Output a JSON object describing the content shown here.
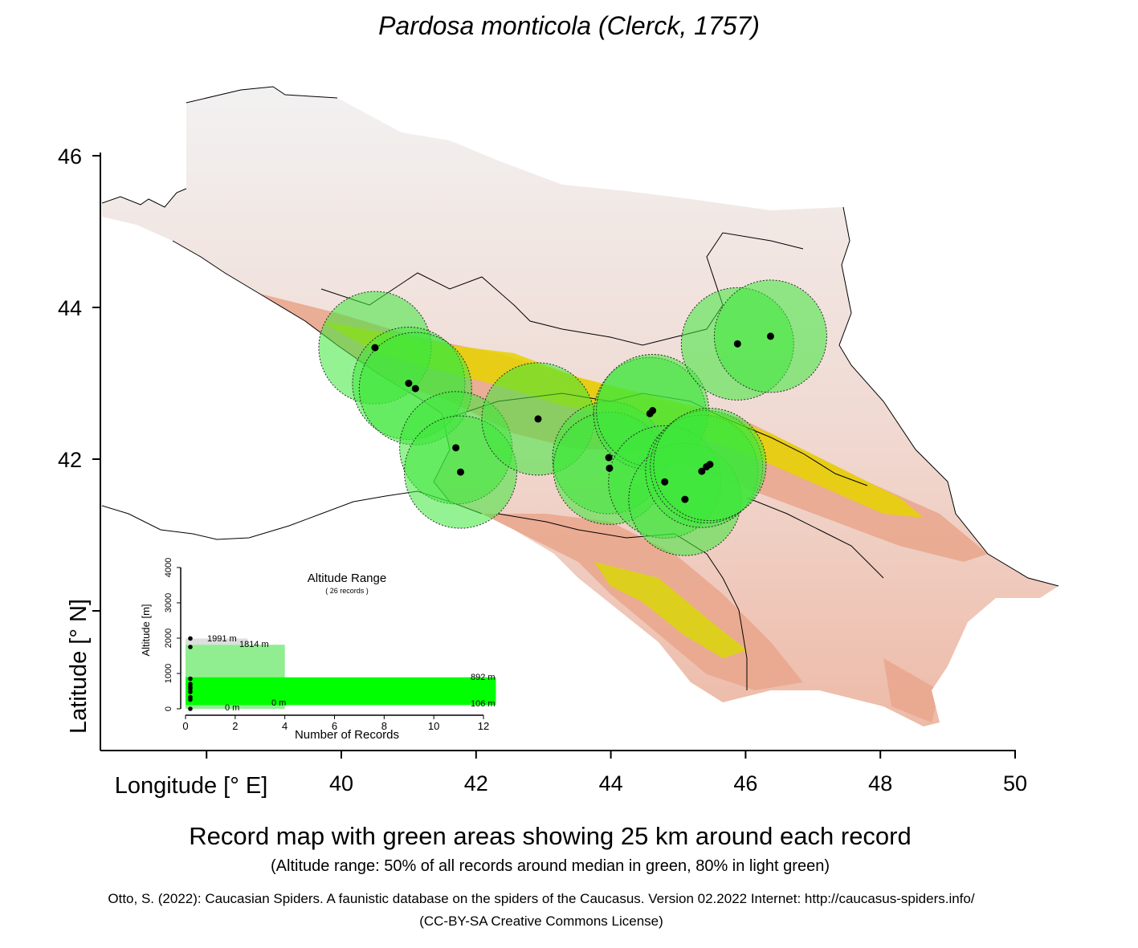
{
  "title": "Pardosa monticola (Clerck, 1757)",
  "caption": "Record map with green areas showing 25 km around each record",
  "subcaption": "(Altitude range: 50% of all records around median in green, 80% in light green)",
  "citation": "Otto, S. (2022): Caucasian Spiders. A faunistic database on the spiders of the Caucasus. Version 02.2022 Internet: http://caucasus-spiders.info/",
  "license": "(CC-BY-SA Creative Commons License)",
  "map": {
    "x_axis_label": "Longitude [° E]",
    "y_axis_label": "Latitude [° N]",
    "x_ticks": [
      "40",
      "42",
      "44",
      "46",
      "48",
      "50"
    ],
    "y_ticks": [
      "42",
      "44",
      "46"
    ],
    "buffer_radius_km": 25,
    "colors": {
      "buffer": "#3ee83a",
      "record": "#000000",
      "relief_low": "#f2f2f2",
      "relief_mid": "#e8a080",
      "relief_high": "#e6e600"
    },
    "records": [
      {
        "lon": 40.5,
        "lat": 43.47
      },
      {
        "lon": 41.0,
        "lat": 43.0
      },
      {
        "lon": 41.1,
        "lat": 42.93
      },
      {
        "lon": 41.7,
        "lat": 42.15
      },
      {
        "lon": 41.77,
        "lat": 41.83
      },
      {
        "lon": 42.92,
        "lat": 42.53
      },
      {
        "lon": 43.97,
        "lat": 42.02
      },
      {
        "lon": 43.98,
        "lat": 41.88
      },
      {
        "lon": 44.58,
        "lat": 42.6
      },
      {
        "lon": 44.62,
        "lat": 42.64
      },
      {
        "lon": 44.8,
        "lat": 41.7
      },
      {
        "lon": 45.1,
        "lat": 41.47
      },
      {
        "lon": 45.35,
        "lat": 41.84
      },
      {
        "lon": 45.42,
        "lat": 41.9
      },
      {
        "lon": 45.47,
        "lat": 41.93
      },
      {
        "lon": 45.88,
        "lat": 43.52
      },
      {
        "lon": 46.37,
        "lat": 43.62
      }
    ]
  },
  "inset": {
    "title": "Altitude Range",
    "subtitle": "( 26 records )",
    "x_axis_label": "Number of Records",
    "y_axis_label": "Altitude [m]",
    "x_ticks": [
      "0",
      "2",
      "4",
      "6",
      "8",
      "10",
      "12"
    ],
    "y_ticks": [
      "0",
      "1000",
      "2000",
      "3000",
      "4000"
    ],
    "xlim": [
      0,
      12.5
    ],
    "ylim": [
      0,
      4000
    ],
    "band_80": {
      "low": 0,
      "high": 1814,
      "count": 4,
      "color": "#90ee90"
    },
    "band_50": {
      "low": 106,
      "high": 892,
      "count": 12.5,
      "color": "#00ff00"
    },
    "labels": {
      "max": "1991  m",
      "p80_high": "1814  m",
      "p50_high": "892  m",
      "p50_low": "106  m",
      "p80_low": "0  m",
      "min": "0  m"
    },
    "record_altitudes": [
      0,
      260,
      330,
      480,
      560,
      620,
      700,
      850,
      1750,
      1991
    ]
  }
}
